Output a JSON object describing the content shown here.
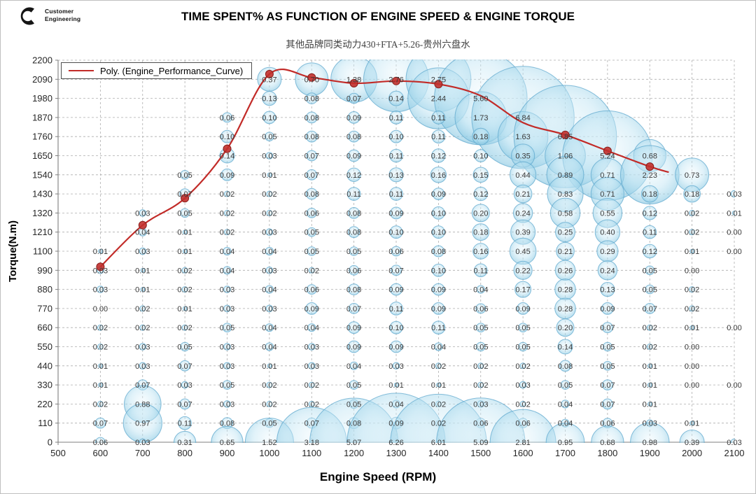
{
  "header": {
    "logo": {
      "line1": "Customer",
      "line2": "Engineering"
    },
    "title": "TIME SPENT% AS FUNCTION OF ENGINE SPEED & ENGINE TORQUE",
    "subtitle": "其他品牌同类动力430+FTA+5.26-贵州六盘水"
  },
  "legend": {
    "label": "Poly. (Engine_Performance_Curve)"
  },
  "chart_data": {
    "type": "bubble",
    "title": "TIME SPENT% AS FUNCTION OF ENGINE SPEED & ENGINE TORQUE",
    "subtitle": "其他品牌同类动力430+FTA+5.26-贵州六盘水",
    "xlabel": "Engine Speed (RPM)",
    "ylabel": "Torque(N.m)",
    "xlim": [
      500,
      2100
    ],
    "ylim": [
      0,
      2200
    ],
    "grid": "dashed",
    "legend_entries": [
      "Poly. (Engine_Performance_Curve)"
    ],
    "legend_position": "top-left",
    "x_ticks": [
      500,
      600,
      700,
      800,
      900,
      1000,
      1100,
      1200,
      1300,
      1400,
      1500,
      1600,
      1700,
      1800,
      1900,
      2000,
      2100
    ],
    "y_ticks": [
      0,
      110,
      220,
      330,
      440,
      550,
      660,
      770,
      880,
      990,
      1100,
      1210,
      1320,
      1430,
      1540,
      1650,
      1760,
      1870,
      1980,
      2090,
      2200
    ],
    "rpm_levels": [
      600,
      700,
      800,
      900,
      1000,
      1100,
      1200,
      1300,
      1400,
      1500,
      1600,
      1700,
      1800,
      1900,
      2000,
      2100
    ],
    "torque_levels": [
      2090,
      1980,
      1870,
      1760,
      1650,
      1540,
      1430,
      1320,
      1210,
      1100,
      990,
      880,
      770,
      660,
      550,
      440,
      330,
      220,
      110,
      0
    ],
    "values": [
      [
        null,
        null,
        null,
        null,
        0.37,
        0.7,
        1.38,
        2.76,
        2.75,
        null,
        null,
        null,
        null,
        null,
        null,
        null
      ],
      [
        null,
        null,
        null,
        null,
        0.13,
        0.08,
        0.07,
        0.14,
        2.44,
        5.6,
        null,
        null,
        null,
        null,
        null,
        null
      ],
      [
        null,
        null,
        null,
        0.06,
        0.1,
        0.08,
        0.09,
        0.11,
        0.11,
        1.73,
        6.84,
        null,
        null,
        null,
        null,
        null
      ],
      [
        null,
        null,
        null,
        0.1,
        0.05,
        0.08,
        0.08,
        0.1,
        0.11,
        0.18,
        1.63,
        6.85,
        null,
        null,
        null,
        null
      ],
      [
        null,
        null,
        null,
        0.14,
        0.03,
        0.07,
        0.09,
        0.11,
        0.12,
        0.1,
        0.35,
        1.06,
        5.24,
        0.68,
        null,
        null
      ],
      [
        null,
        null,
        0.05,
        0.09,
        0.01,
        0.07,
        0.12,
        0.13,
        0.16,
        0.15,
        0.44,
        0.89,
        0.71,
        2.23,
        0.73,
        null
      ],
      [
        null,
        null,
        0.07,
        0.02,
        0.02,
        0.08,
        0.11,
        0.11,
        0.09,
        0.12,
        0.21,
        0.83,
        0.71,
        0.18,
        0.18,
        0.03
      ],
      [
        null,
        0.03,
        0.05,
        0.02,
        0.02,
        0.06,
        0.08,
        0.09,
        0.1,
        0.2,
        0.24,
        0.58,
        0.55,
        0.12,
        0.02,
        0.01
      ],
      [
        null,
        0.04,
        0.01,
        0.02,
        0.03,
        0.05,
        0.08,
        0.1,
        0.1,
        0.18,
        0.39,
        0.25,
        0.4,
        0.11,
        0.02,
        0.0
      ],
      [
        0.01,
        0.03,
        0.01,
        0.04,
        0.04,
        0.05,
        0.05,
        0.06,
        0.08,
        0.16,
        0.45,
        0.21,
        0.29,
        0.12,
        0.01,
        0.0
      ],
      [
        0.03,
        0.01,
        0.02,
        0.04,
        0.03,
        0.02,
        0.06,
        0.07,
        0.1,
        0.11,
        0.22,
        0.26,
        0.24,
        0.05,
        0.0,
        null
      ],
      [
        0.03,
        0.01,
        0.02,
        0.03,
        0.04,
        0.06,
        0.08,
        0.09,
        0.09,
        0.04,
        0.17,
        0.28,
        0.13,
        0.05,
        0.02,
        null
      ],
      [
        0.0,
        0.02,
        0.01,
        0.03,
        0.03,
        0.09,
        0.07,
        0.11,
        0.09,
        0.06,
        0.09,
        0.28,
        0.09,
        0.07,
        0.02,
        null
      ],
      [
        0.02,
        0.02,
        0.02,
        0.05,
        0.04,
        0.04,
        0.09,
        0.1,
        0.11,
        0.05,
        0.05,
        0.2,
        0.07,
        0.02,
        0.01,
        0.0
      ],
      [
        0.02,
        0.03,
        0.05,
        0.03,
        0.04,
        0.03,
        0.09,
        0.09,
        0.04,
        0.05,
        0.05,
        0.14,
        0.05,
        0.02,
        0.0,
        null
      ],
      [
        0.01,
        0.03,
        0.07,
        0.03,
        0.01,
        0.03,
        0.04,
        0.03,
        0.02,
        0.02,
        0.02,
        0.08,
        0.05,
        0.01,
        0.0,
        null
      ],
      [
        0.01,
        0.07,
        0.03,
        0.05,
        0.02,
        0.02,
        0.05,
        0.01,
        0.01,
        0.02,
        0.03,
        0.05,
        0.07,
        0.01,
        0.0,
        0.0
      ],
      [
        0.02,
        0.88,
        0.07,
        0.03,
        0.02,
        0.02,
        0.05,
        0.04,
        0.02,
        0.03,
        0.02,
        0.04,
        0.07,
        0.01,
        null,
        null
      ],
      [
        0.07,
        0.97,
        0.11,
        0.08,
        0.05,
        0.07,
        0.08,
        0.09,
        0.02,
        0.06,
        0.06,
        0.04,
        0.06,
        0.03,
        0.01,
        null
      ],
      [
        0.06,
        0.03,
        0.31,
        0.65,
        1.52,
        3.18,
        5.07,
        6.26,
        6.01,
        5.09,
        2.81,
        0.95,
        0.68,
        0.98,
        0.39,
        0.03
      ]
    ],
    "poly_curve_points": [
      [
        600,
        1010
      ],
      [
        700,
        1250
      ],
      [
        800,
        1405
      ],
      [
        900,
        1690
      ],
      [
        1000,
        2120
      ],
      [
        1100,
        2100
      ],
      [
        1200,
        2067
      ],
      [
        1300,
        2080
      ],
      [
        1400,
        2062
      ],
      [
        1500,
        1995
      ],
      [
        1600,
        1840
      ],
      [
        1700,
        1770
      ],
      [
        1800,
        1678
      ],
      [
        1900,
        1587
      ],
      [
        1945,
        1555
      ]
    ],
    "curve_dot_points": [
      [
        600,
        1010
      ],
      [
        700,
        1250
      ],
      [
        800,
        1405
      ],
      [
        900,
        1690
      ],
      [
        1000,
        2120
      ],
      [
        1100,
        2100
      ],
      [
        1200,
        2067
      ],
      [
        1300,
        2080
      ],
      [
        1400,
        2062
      ],
      [
        1700,
        1770
      ],
      [
        1800,
        1678
      ],
      [
        1900,
        1587
      ]
    ],
    "colors": {
      "bubble_fill": "#9fd3ea",
      "bubble_stroke": "#5fa8cd",
      "curve": "#c22b28",
      "dot": "#c2302c",
      "label_text": "#3a3a3a",
      "grid": "#adadad",
      "axis": "#7f7f7f"
    }
  }
}
